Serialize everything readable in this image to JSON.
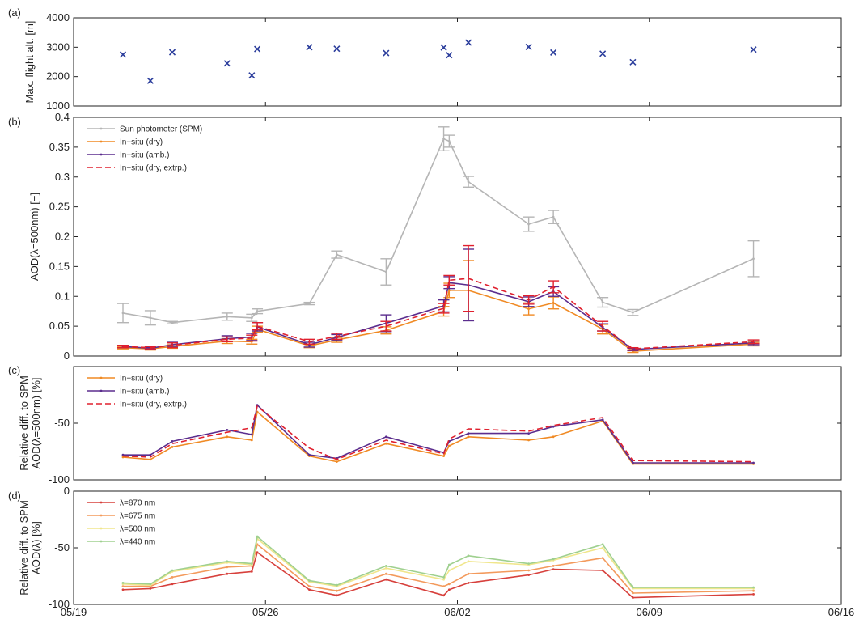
{
  "chart_data": [
    {
      "id": "a",
      "panel_label": "(a)",
      "type": "scatter",
      "ylabel": "Max. flight alt. [m]",
      "ylim": [
        1000,
        4000
      ],
      "yticks": [
        1000,
        2000,
        3000,
        4000
      ],
      "x_unit": "days since 05/19",
      "series": [
        {
          "color": "#2b3d9c",
          "marker": "x",
          "points": [
            [
              1.8,
              2750
            ],
            [
              2.8,
              1860
            ],
            [
              3.6,
              2830
            ],
            [
              5.6,
              2450
            ],
            [
              6.5,
              2040
            ],
            [
              6.7,
              2940
            ],
            [
              8.6,
              3000
            ],
            [
              9.6,
              2950
            ],
            [
              11.4,
              2800
            ],
            [
              13.5,
              2990
            ],
            [
              13.7,
              2730
            ],
            [
              14.4,
              3160
            ],
            [
              16.6,
              3010
            ],
            [
              17.5,
              2820
            ],
            [
              19.3,
              2780
            ],
            [
              20.4,
              2490
            ],
            [
              24.8,
              2920
            ]
          ]
        }
      ]
    },
    {
      "id": "b",
      "panel_label": "(b)",
      "type": "line",
      "ylabel": "AOD(λ=500nm) [−]",
      "ylim": [
        0,
        0.4
      ],
      "yticks": [
        0,
        0.05,
        0.1,
        0.15,
        0.2,
        0.25,
        0.3,
        0.35,
        0.4
      ],
      "ytick_labels": [
        "0",
        "0.05",
        "0.1",
        "0.15",
        "0.2",
        "0.25",
        "0.3",
        "0.35",
        "0.4"
      ],
      "legend_position": "top-left",
      "series": [
        {
          "name": "Sun photometer (SPM)",
          "color": "#b5b5b5",
          "dashed": false,
          "x": [
            1.8,
            2.8,
            3.6,
            5.6,
            6.5,
            6.7,
            8.6,
            9.6,
            11.4,
            13.5,
            13.7,
            14.4,
            16.6,
            17.5,
            19.3,
            20.4,
            24.8
          ],
          "y": [
            0.072,
            0.064,
            0.056,
            0.066,
            0.064,
            0.075,
            0.088,
            0.17,
            0.141,
            0.364,
            0.36,
            0.292,
            0.221,
            0.233,
            0.09,
            0.073,
            0.163
          ],
          "err": [
            0.016,
            0.012,
            0.002,
            0.006,
            0.006,
            0.004,
            0.002,
            0.006,
            0.022,
            0.02,
            0.01,
            0.009,
            0.012,
            0.011,
            0.008,
            0.005,
            0.03
          ]
        },
        {
          "name": "In−situ (dry)",
          "color": "#f08a24",
          "dashed": false,
          "x": [
            1.8,
            2.8,
            3.6,
            5.6,
            6.5,
            6.7,
            8.6,
            9.6,
            11.4,
            13.5,
            13.7,
            14.4,
            16.6,
            17.5,
            19.3,
            20.4,
            24.8
          ],
          "y": [
            0.014,
            0.012,
            0.016,
            0.025,
            0.024,
            0.045,
            0.017,
            0.027,
            0.043,
            0.075,
            0.11,
            0.11,
            0.079,
            0.089,
            0.045,
            0.008,
            0.02
          ],
          "err": [
            0.002,
            0.002,
            0.003,
            0.004,
            0.004,
            0.005,
            0.003,
            0.004,
            0.006,
            0.008,
            0.012,
            0.05,
            0.01,
            0.01,
            0.008,
            0.002,
            0.003
          ]
        },
        {
          "name": "In−situ (amb.)",
          "color": "#5b2d8e",
          "dashed": false,
          "x": [
            1.8,
            2.8,
            3.6,
            5.6,
            6.5,
            6.7,
            8.6,
            9.6,
            11.4,
            13.5,
            13.7,
            14.4,
            16.6,
            17.5,
            19.3,
            20.4,
            24.8
          ],
          "y": [
            0.016,
            0.013,
            0.019,
            0.029,
            0.032,
            0.049,
            0.019,
            0.031,
            0.055,
            0.084,
            0.123,
            0.119,
            0.091,
            0.108,
            0.048,
            0.011,
            0.022
          ],
          "err": [
            0.002,
            0.002,
            0.004,
            0.005,
            0.006,
            0.007,
            0.004,
            0.005,
            0.014,
            0.01,
            0.01,
            0.06,
            0.008,
            0.008,
            0.006,
            0.002,
            0.003
          ]
        },
        {
          "name": "In−situ (dry, extrp.)",
          "color": "#e0202e",
          "dashed": true,
          "x": [
            1.8,
            2.8,
            3.6,
            5.6,
            6.5,
            6.7,
            8.6,
            9.6,
            11.4,
            13.5,
            13.7,
            14.4,
            16.6,
            17.5,
            19.3,
            20.4,
            24.8
          ],
          "y": [
            0.016,
            0.014,
            0.018,
            0.028,
            0.03,
            0.05,
            0.024,
            0.033,
            0.05,
            0.08,
            0.127,
            0.13,
            0.094,
            0.116,
            0.05,
            0.012,
            0.024
          ],
          "err": [
            0.002,
            0.002,
            0.004,
            0.004,
            0.005,
            0.006,
            0.004,
            0.005,
            0.008,
            0.008,
            0.008,
            0.055,
            0.007,
            0.01,
            0.008,
            0.002,
            0.003
          ]
        }
      ]
    },
    {
      "id": "c",
      "panel_label": "(c)",
      "type": "line",
      "ylabel_line1": "Relative diff. to SPM",
      "ylabel_line2": "AOD(λ=500nm) [%]",
      "ylim": [
        -100,
        0
      ],
      "yticks": [
        -100,
        -50
      ],
      "legend_position": "top-left",
      "series": [
        {
          "name": "In−situ (dry)",
          "color": "#f08a24",
          "dashed": false,
          "x": [
            1.8,
            2.8,
            3.6,
            5.6,
            6.5,
            6.7,
            8.6,
            9.6,
            11.4,
            13.5,
            13.7,
            14.4,
            16.6,
            17.5,
            19.3,
            20.4,
            24.8
          ],
          "y": [
            -80,
            -82,
            -71,
            -62,
            -65,
            -40,
            -79,
            -84,
            -68,
            -79,
            -70,
            -62,
            -65,
            -62,
            -48,
            -86,
            -86
          ]
        },
        {
          "name": "In−situ (amb.)",
          "color": "#5b2d8e",
          "dashed": false,
          "x": [
            1.8,
            2.8,
            3.6,
            5.6,
            6.5,
            6.7,
            8.6,
            9.6,
            11.4,
            13.5,
            13.7,
            14.4,
            16.6,
            17.5,
            19.3,
            20.4,
            24.8
          ],
          "y": [
            -78,
            -78,
            -66,
            -56,
            -60,
            -34,
            -78,
            -81,
            -62,
            -76,
            -66,
            -59,
            -59,
            -53,
            -47,
            -85,
            -85
          ]
        },
        {
          "name": "In−situ (dry, extrp.)",
          "color": "#e0202e",
          "dashed": true,
          "x": [
            1.8,
            2.8,
            3.6,
            5.6,
            6.5,
            6.7,
            8.6,
            9.6,
            11.4,
            13.5,
            13.7,
            14.4,
            16.6,
            17.5,
            19.3,
            20.4,
            24.8
          ],
          "y": [
            -79,
            -80,
            -68,
            -58,
            -54,
            -35,
            -72,
            -82,
            -65,
            -77,
            -64,
            -55,
            -57,
            -52,
            -45,
            -83,
            -84
          ]
        }
      ]
    },
    {
      "id": "d",
      "panel_label": "(d)",
      "type": "line",
      "ylabel_line1": "Relative diff. to SPM",
      "ylabel_line2": "AOD(λ) [%]",
      "ylim": [
        -100,
        0
      ],
      "yticks": [
        -100,
        -50,
        0
      ],
      "legend_position": "top-left",
      "series": [
        {
          "name": "λ=870 nm",
          "color": "#d7403c",
          "dashed": false,
          "x": [
            1.8,
            2.8,
            3.6,
            5.6,
            6.5,
            6.7,
            8.6,
            9.6,
            11.4,
            13.5,
            13.7,
            14.4,
            16.6,
            17.5,
            19.3,
            20.4,
            24.8
          ],
          "y": [
            -87,
            -86,
            -82,
            -73,
            -71,
            -54,
            -87,
            -92,
            -78,
            -92,
            -87,
            -81,
            -74,
            -69,
            -70,
            -94,
            -91
          ]
        },
        {
          "name": "λ=675 nm",
          "color": "#f39a5c",
          "dashed": false,
          "x": [
            1.8,
            2.8,
            3.6,
            5.6,
            6.5,
            6.7,
            8.6,
            9.6,
            11.4,
            13.5,
            13.7,
            14.4,
            16.6,
            17.5,
            19.3,
            20.4,
            24.8
          ],
          "y": [
            -84,
            -84,
            -76,
            -67,
            -66,
            -47,
            -84,
            -88,
            -73,
            -84,
            -82,
            -73,
            -70,
            -66,
            -59,
            -90,
            -88
          ]
        },
        {
          "name": "λ=500 nm",
          "color": "#f0e68c",
          "dashed": false,
          "x": [
            1.8,
            2.8,
            3.6,
            5.6,
            6.5,
            6.7,
            8.6,
            9.6,
            11.4,
            13.5,
            13.7,
            14.4,
            16.6,
            17.5,
            19.3,
            20.4,
            24.8
          ],
          "y": [
            -82,
            -83,
            -71,
            -63,
            -65,
            -42,
            -80,
            -84,
            -68,
            -78,
            -70,
            -62,
            -65,
            -61,
            -50,
            -86,
            -86
          ]
        },
        {
          "name": "λ=440 nm",
          "color": "#9fd08f",
          "dashed": false,
          "x": [
            1.8,
            2.8,
            3.6,
            5.6,
            6.5,
            6.7,
            8.6,
            9.6,
            11.4,
            13.5,
            13.7,
            14.4,
            16.6,
            17.5,
            19.3,
            20.4,
            24.8
          ],
          "y": [
            -81,
            -82,
            -70,
            -62,
            -64,
            -40,
            -79,
            -83,
            -66,
            -76,
            -65,
            -57,
            -64,
            -60,
            -47,
            -85,
            -85
          ]
        }
      ]
    }
  ],
  "x_axis": {
    "xlim": [
      0,
      28
    ],
    "ticks": [
      {
        "x": 0,
        "label": "05/19"
      },
      {
        "x": 7,
        "label": "05/26"
      },
      {
        "x": 14,
        "label": "06/02"
      },
      {
        "x": 21,
        "label": "06/09"
      },
      {
        "x": 28,
        "label": "06/16"
      }
    ]
  }
}
